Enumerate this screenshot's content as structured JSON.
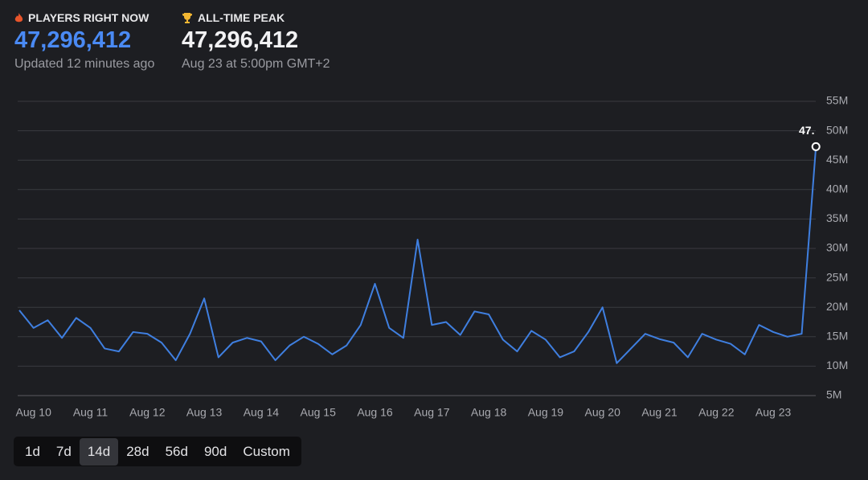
{
  "header": {
    "current": {
      "label": "PLAYERS RIGHT NOW",
      "value": "47,296,412",
      "note": "Updated 12 minutes ago"
    },
    "peak": {
      "label": "ALL-TIME PEAK",
      "value": "47,296,412",
      "note": "Aug 23 at 5:00pm GMT+2"
    }
  },
  "chart_data": {
    "type": "line",
    "categories": [
      null,
      "Aug 10",
      null,
      null,
      null,
      "Aug 11",
      null,
      null,
      null,
      "Aug 12",
      null,
      null,
      null,
      "Aug 13",
      null,
      null,
      null,
      "Aug 14",
      null,
      null,
      null,
      "Aug 15",
      null,
      null,
      null,
      "Aug 16",
      null,
      null,
      null,
      "Aug 17",
      null,
      null,
      null,
      "Aug 18",
      null,
      null,
      null,
      "Aug 19",
      null,
      null,
      null,
      "Aug 20",
      null,
      null,
      null,
      "Aug 21",
      null,
      null,
      null,
      "Aug 22",
      null,
      null,
      null,
      "Aug 23",
      null,
      null,
      null
    ],
    "values": [
      19.5,
      16.5,
      17.8,
      14.8,
      18.2,
      16.5,
      13,
      12.5,
      15.8,
      15.5,
      14,
      11,
      15.5,
      21.5,
      11.5,
      14,
      14.8,
      14.2,
      11,
      13.5,
      15,
      13.8,
      12,
      13.5,
      17,
      24,
      16.5,
      14.8,
      31.5,
      17,
      17.5,
      15.3,
      19.3,
      18.8,
      14.5,
      12.5,
      16,
      14.5,
      11.5,
      12.5,
      15.8,
      20,
      10.5,
      13,
      15.5,
      14.6,
      14,
      11.5,
      15.5,
      14.5,
      13.8,
      12,
      17,
      15.8,
      15,
      15.5,
      47.3
    ],
    "color": "#3f7fe0",
    "annotation": "47.",
    "ylim": [
      5,
      55
    ],
    "yticks": [
      {
        "value": 5,
        "label": "5M"
      },
      {
        "value": 10,
        "label": "10M"
      },
      {
        "value": 15,
        "label": "15M"
      },
      {
        "value": 20,
        "label": "20M"
      },
      {
        "value": 25,
        "label": "25M"
      },
      {
        "value": 30,
        "label": "30M"
      },
      {
        "value": 35,
        "label": "35M"
      },
      {
        "value": 40,
        "label": "40M"
      },
      {
        "value": 45,
        "label": "45M"
      },
      {
        "value": 50,
        "label": "50M"
      },
      {
        "value": 55,
        "label": "55M"
      }
    ],
    "grid": true
  },
  "ranges": [
    "1d",
    "7d",
    "14d",
    "28d",
    "56d",
    "90d",
    "Custom"
  ]
}
